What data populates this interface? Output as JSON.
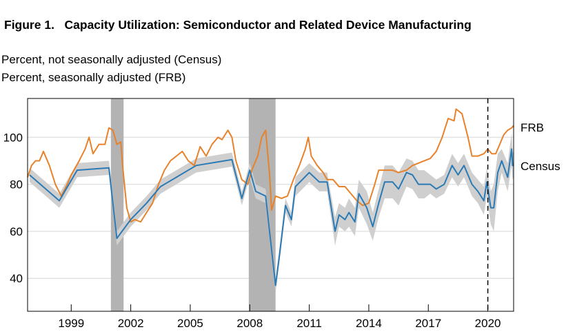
{
  "chart_data": {
    "type": "line",
    "title": "Figure 1.   Capacity Utilization: Semiconductor and Related Device Manufacturing",
    "ylabels": [
      "Percent, not seasonally adjusted (Census)",
      "Percent, seasonally adjusted (FRB)"
    ],
    "xlim": [
      1996.8,
      2021.3
    ],
    "ylim": [
      26,
      116.5
    ],
    "xticks": [
      1999,
      2002,
      2005,
      2008,
      2011,
      2014,
      2017,
      2020
    ],
    "yticks": [
      40,
      60,
      80,
      100
    ],
    "grid": "horizontal",
    "recessions": [
      [
        2001.0,
        2001.64
      ],
      [
        2007.95,
        2009.3
      ]
    ],
    "vline": 2020.0,
    "colors": {
      "FRB": "#e8822a",
      "Census": "#2a7ab5",
      "band": "#cfcfcf",
      "recession": "#b3b3b3"
    },
    "series": [
      {
        "name": "Census",
        "band_width": [
          3,
          3,
          3,
          3,
          3,
          3,
          3,
          3,
          3,
          3,
          3,
          3,
          3,
          3,
          3,
          3,
          3,
          3,
          3,
          4,
          4,
          4,
          4,
          6,
          5,
          5,
          6,
          6,
          6,
          7,
          6,
          6,
          7,
          7,
          7,
          6,
          6,
          6,
          6,
          4,
          4,
          4,
          5,
          5,
          5,
          5,
          5,
          6,
          6,
          7,
          10,
          8,
          5,
          6,
          7,
          6,
          5
        ],
        "x": [
          1996.9,
          1998.4,
          1999.3,
          2000.9,
          2001.3,
          2002.0,
          2002.8,
          2003.5,
          2004.3,
          2005.3,
          2007.1,
          2007.6,
          2008.0,
          2008.3,
          2008.8,
          2009.3,
          2009.5,
          2009.8,
          2010.1,
          2010.3,
          2011.0,
          2011.5,
          2011.9,
          2012.3,
          2012.5,
          2012.8,
          2013.0,
          2013.3,
          2013.5,
          2013.9,
          2014.2,
          2014.5,
          2014.8,
          2015.2,
          2015.5,
          2015.9,
          2016.2,
          2016.5,
          2016.8,
          2017.1,
          2017.4,
          2017.8,
          2018.2,
          2018.5,
          2018.8,
          2019.2,
          2019.5,
          2019.8,
          2019.95,
          2020.15,
          2020.3,
          2020.5,
          2020.7,
          2021.0,
          2021.2,
          2021.25,
          2021.3
        ],
        "values": [
          84,
          73,
          86,
          87,
          57,
          65,
          72,
          79,
          83,
          88,
          90.5,
          74,
          86,
          77,
          75,
          37,
          50,
          71,
          65,
          79,
          85,
          81,
          81,
          60,
          67,
          65,
          68,
          64,
          76,
          70,
          62,
          72,
          81,
          81,
          78,
          85,
          84,
          80,
          80,
          80,
          78,
          80,
          88,
          84,
          88,
          80,
          77,
          73,
          81,
          70,
          70,
          85,
          90,
          83,
          95,
          88,
          88
        ]
      },
      {
        "name": "FRB",
        "x": [
          1996.8,
          1997.0,
          1997.2,
          1997.4,
          1997.6,
          1997.9,
          1998.2,
          1998.5,
          1998.8,
          1999.0,
          1999.4,
          1999.7,
          1999.9,
          2000.1,
          2000.4,
          2000.7,
          2000.9,
          2001.1,
          2001.3,
          2001.5,
          2001.6,
          2001.8,
          2002.0,
          2002.2,
          2002.5,
          2002.8,
          2003.1,
          2003.4,
          2003.7,
          2004.0,
          2004.3,
          2004.6,
          2004.9,
          2005.2,
          2005.5,
          2005.8,
          2006.1,
          2006.4,
          2006.6,
          2006.9,
          2007.1,
          2007.3,
          2007.6,
          2007.9,
          2008.1,
          2008.4,
          2008.6,
          2008.8,
          2009.0,
          2009.1,
          2009.3,
          2009.6,
          2009.9,
          2010.2,
          2010.5,
          2010.8,
          2010.95,
          2011.1,
          2011.4,
          2011.7,
          2011.9,
          2012.2,
          2012.5,
          2012.8,
          2013.1,
          2013.4,
          2013.7,
          2014.0,
          2014.3,
          2014.5,
          2014.8,
          2015.2,
          2015.5,
          2015.9,
          2016.2,
          2016.5,
          2016.8,
          2017.1,
          2017.4,
          2017.7,
          2018.0,
          2018.3,
          2018.4,
          2018.7,
          2019.0,
          2019.2,
          2019.5,
          2019.8,
          2020.0,
          2020.2,
          2020.4,
          2020.6,
          2020.8,
          2021.0,
          2021.2,
          2021.3
        ],
        "values": [
          83,
          88,
          90,
          90,
          94,
          88,
          80,
          75,
          80,
          84,
          90,
          95,
          100,
          93,
          97,
          97,
          104,
          103,
          97,
          98,
          87,
          70,
          64,
          65,
          64,
          68,
          72,
          80,
          86,
          90,
          92,
          94,
          90,
          88,
          96,
          92,
          97,
          100,
          99,
          103,
          100,
          90,
          82,
          80,
          86,
          92,
          100,
          103,
          84,
          69,
          75,
          74,
          75,
          82,
          88,
          95,
          100,
          92,
          88,
          85,
          82,
          82,
          79,
          79,
          76,
          73,
          71,
          72,
          80,
          86,
          86,
          86,
          85,
          86,
          88,
          89,
          90,
          91,
          94,
          100,
          108,
          107,
          112,
          110,
          100,
          92,
          92,
          93,
          95,
          93,
          93,
          97,
          101,
          103,
          104,
          105
        ]
      }
    ],
    "series_labels": {
      "FRB": "FRB",
      "Census": "Census"
    }
  }
}
